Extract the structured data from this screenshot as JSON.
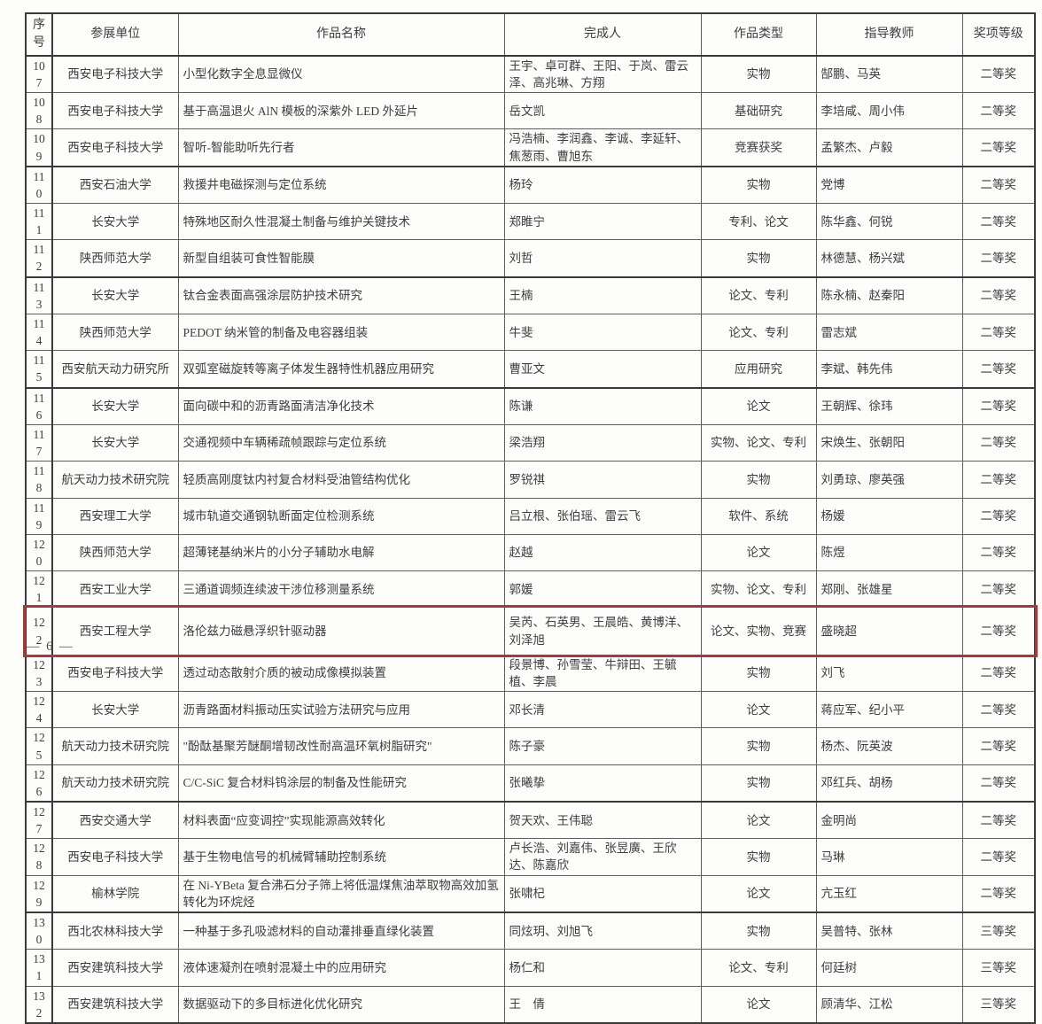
{
  "page": {
    "footer_page_number": "— 6 —"
  },
  "highlight": {
    "row_no": "122",
    "color": "#a23b3e"
  },
  "table": {
    "columns": [
      "序号",
      "参展单位",
      "作品名称",
      "完成人",
      "作品类型",
      "指导教师",
      "奖项等级"
    ],
    "rows": [
      {
        "no": "107",
        "unit": "西安电子科技大学",
        "title": "小型化数字全息显微仪",
        "authors": "王宇、卓可群、王阳、于岚、雷云泽、高兆琳、方翔",
        "type": "实物",
        "advisors": "郜鹏、马英",
        "award": "二等奖",
        "sep": false,
        "hl": false
      },
      {
        "no": "108",
        "unit": "西安电子科技大学",
        "title": "基于高温退火 AlN 模板的深紫外 LED 外延片",
        "authors": "岳文凯",
        "type": "基础研究",
        "advisors": "李培咸、周小伟",
        "award": "二等奖",
        "sep": false,
        "hl": false
      },
      {
        "no": "109",
        "unit": "西安电子科技大学",
        "title": "智听-智能助听先行者",
        "authors": "冯浩楠、李润鑫、李诚、李延轩、焦葱雨、曹旭东",
        "type": "竞赛获奖",
        "advisors": "孟繁杰、卢毅",
        "award": "二等奖",
        "sep": true,
        "hl": false
      },
      {
        "no": "110",
        "unit": "西安石油大学",
        "title": "救援井电磁探测与定位系统",
        "authors": "杨玲",
        "type": "实物",
        "advisors": "党博",
        "award": "二等奖",
        "sep": false,
        "hl": false
      },
      {
        "no": "111",
        "unit": "长安大学",
        "title": "特殊地区耐久性混凝土制备与维护关键技术",
        "authors": "郑睢宁",
        "type": "专利、论文",
        "advisors": "陈华鑫、何锐",
        "award": "二等奖",
        "sep": false,
        "hl": false
      },
      {
        "no": "112",
        "unit": "陕西师范大学",
        "title": "新型自组装可食性智能膜",
        "authors": "刘哲",
        "type": "实物",
        "advisors": "林德慧、杨兴斌",
        "award": "二等奖",
        "sep": true,
        "hl": false
      },
      {
        "no": "113",
        "unit": "长安大学",
        "title": "钛合金表面高强涂层防护技术研究",
        "authors": "王楠",
        "type": "论文、专利",
        "advisors": "陈永楠、赵秦阳",
        "award": "二等奖",
        "sep": false,
        "hl": false
      },
      {
        "no": "114",
        "unit": "陕西师范大学",
        "title": "PEDOT 纳米管的制备及电容器组装",
        "authors": "牛斐",
        "type": "论文、专利",
        "advisors": "雷志斌",
        "award": "二等奖",
        "sep": false,
        "hl": false
      },
      {
        "no": "115",
        "unit": "西安航天动力研究所",
        "title": "双弧室磁旋转等离子体发生器特性机器应用研究",
        "authors": "曹亚文",
        "type": "应用研究",
        "advisors": "李斌、韩先伟",
        "award": "二等奖",
        "sep": true,
        "hl": false
      },
      {
        "no": "116",
        "unit": "长安大学",
        "title": "面向碳中和的沥青路面清洁净化技术",
        "authors": "陈谦",
        "type": "论文",
        "advisors": "王朝辉、徐玮",
        "award": "二等奖",
        "sep": false,
        "hl": false
      },
      {
        "no": "117",
        "unit": "长安大学",
        "title": "交通视频中车辆稀疏帧跟踪与定位系统",
        "authors": "梁浩翔",
        "type": "实物、论文、专利",
        "advisors": "宋焕生、张朝阳",
        "award": "二等奖",
        "sep": false,
        "hl": false
      },
      {
        "no": "118",
        "unit": "航天动力技术研究院",
        "title": "轻质高刚度钛内衬复合材料受油管结构优化",
        "authors": "罗锐祺",
        "type": "实物",
        "advisors": "刘勇琼、廖英强",
        "award": "二等奖",
        "sep": false,
        "hl": false
      },
      {
        "no": "119",
        "unit": "西安理工大学",
        "title": "城市轨道交通钢轨断面定位检测系统",
        "authors": "吕立根、张伯瑶、雷云飞",
        "type": "软件、系统",
        "advisors": "杨媛",
        "award": "二等奖",
        "sep": false,
        "hl": false
      },
      {
        "no": "120",
        "unit": "陕西师范大学",
        "title": "超薄铑基纳米片的小分子辅助水电解",
        "authors": "赵越",
        "type": "论文",
        "advisors": "陈煜",
        "award": "二等奖",
        "sep": false,
        "hl": false
      },
      {
        "no": "121",
        "unit": "西安工业大学",
        "title": "三通道调频连续波干涉位移测量系统",
        "authors": "郭媛",
        "type": "实物、论文、专利",
        "advisors": "郑刚、张雄星",
        "award": "二等奖",
        "sep": false,
        "hl": false
      },
      {
        "no": "122",
        "unit": "西安工程大学",
        "title": "洛伦兹力磁悬浮织针驱动器",
        "authors": "吴芮、石英男、王晨皓、黄博洋、刘泽旭",
        "type": "论文、实物、竞赛",
        "advisors": "盛晓超",
        "award": "二等奖",
        "sep": false,
        "hl": true
      },
      {
        "no": "123",
        "unit": "西安电子科技大学",
        "title": "透过动态散射介质的被动成像模拟装置",
        "authors": "段景博、孙雪莹、牛辩田、王毓植、李晨",
        "type": "实物",
        "advisors": "刘飞",
        "award": "二等奖",
        "sep": false,
        "hl": false
      },
      {
        "no": "124",
        "unit": "长安大学",
        "title": "沥青路面材料振动压实试验方法研究与应用",
        "authors": "邓长清",
        "type": "论文",
        "advisors": "蒋应军、纪小平",
        "award": "二等奖",
        "sep": false,
        "hl": false
      },
      {
        "no": "125",
        "unit": "航天动力技术研究院",
        "title": "\"酚酞基聚芳醚酮增韧改性耐高温环氧树脂研究\"",
        "authors": "陈子豪",
        "type": "实物",
        "advisors": "杨杰、阮英波",
        "award": "二等奖",
        "sep": false,
        "hl": false
      },
      {
        "no": "126",
        "unit": "航天动力技术研究院",
        "title": "C/C-SiC 复合材料钨涂层的制备及性能研究",
        "authors": "张曦挚",
        "type": "实物",
        "advisors": "邓红兵、胡杨",
        "award": "二等奖",
        "sep": true,
        "hl": false
      },
      {
        "no": "127",
        "unit": "西安交通大学",
        "title": "材料表面“应变调控”实现能源高效转化",
        "authors": "贺天欢、王伟聪",
        "type": "论文",
        "advisors": "金明尚",
        "award": "二等奖",
        "sep": false,
        "hl": false
      },
      {
        "no": "128",
        "unit": "西安电子科技大学",
        "title": "基于生物电信号的机械臂辅助控制系统",
        "authors": "卢长浩、刘嘉伟、张昱廣、王欣达、陈嘉欣",
        "type": "实物",
        "advisors": "马琳",
        "award": "二等奖",
        "sep": false,
        "hl": false
      },
      {
        "no": "129",
        "unit": "榆林学院",
        "title": "在 Ni-YBeta 复合沸石分子筛上将低温煤焦油萃取物高效加氢转化为环烷烃",
        "authors": "张啸杞",
        "type": "论文",
        "advisors": "亢玉红",
        "award": "二等奖",
        "sep": true,
        "hl": false
      },
      {
        "no": "130",
        "unit": "西北农林科技大学",
        "title": "一种基于多孔吸滤材料的自动灌排垂直绿化装置",
        "authors": "同炫玥、刘旭飞",
        "type": "实物",
        "advisors": "吴普特、张林",
        "award": "三等奖",
        "sep": false,
        "hl": false
      },
      {
        "no": "131",
        "unit": "西安建筑科技大学",
        "title": "液体速凝剂在喷射混凝土中的应用研究",
        "authors": "杨仁和",
        "type": "论文、专利",
        "advisors": "何廷树",
        "award": "三等奖",
        "sep": false,
        "hl": false
      },
      {
        "no": "132",
        "unit": "西安建筑科技大学",
        "title": "数据驱动下的多目标进化优化研究",
        "authors": "王　倩",
        "type": "论文",
        "advisors": "顾清华、江松",
        "award": "三等奖",
        "sep": false,
        "hl": false
      }
    ]
  }
}
